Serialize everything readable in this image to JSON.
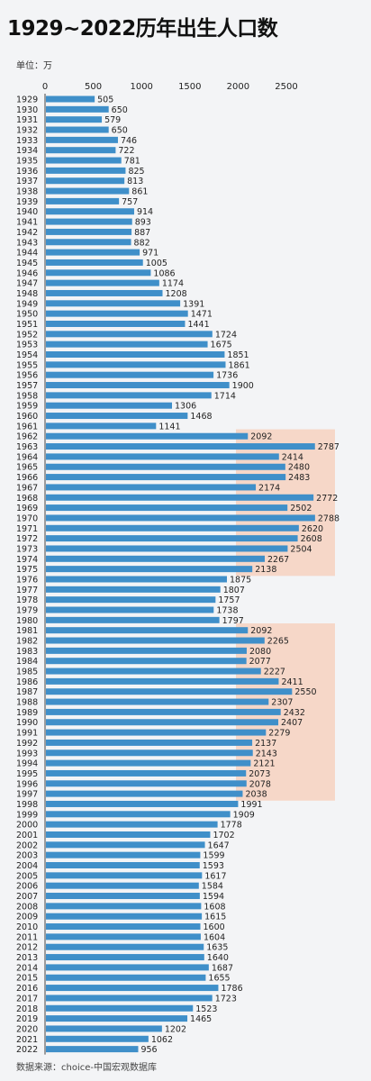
{
  "title": "1929~2022历年出生人口数",
  "unit_label": "单位：万",
  "source": "数据来源：choice-中国宏观数据库",
  "colors": {
    "bar": "#3f8fc9",
    "text": "#222222",
    "highlight": "#f7cdb8"
  },
  "chart_data": {
    "type": "bar",
    "orientation": "horizontal",
    "xticks": [
      0,
      500,
      1000,
      1500,
      2000,
      2500
    ],
    "xlim": [
      0,
      2800
    ],
    "highlight_ranges": [
      [
        1962,
        1975
      ],
      [
        1981,
        1997
      ]
    ],
    "categories": [
      "1929",
      "1930",
      "1931",
      "1932",
      "1933",
      "1934",
      "1935",
      "1936",
      "1937",
      "1938",
      "1939",
      "1940",
      "1941",
      "1942",
      "1943",
      "1944",
      "1945",
      "1946",
      "1947",
      "1948",
      "1949",
      "1950",
      "1951",
      "1952",
      "1953",
      "1954",
      "1955",
      "1956",
      "1957",
      "1958",
      "1959",
      "1960",
      "1961",
      "1962",
      "1963",
      "1964",
      "1965",
      "1966",
      "1967",
      "1968",
      "1969",
      "1970",
      "1971",
      "1972",
      "1973",
      "1974",
      "1975",
      "1976",
      "1977",
      "1978",
      "1979",
      "1980",
      "1981",
      "1982",
      "1983",
      "1984",
      "1985",
      "1986",
      "1987",
      "1988",
      "1989",
      "1990",
      "1991",
      "1992",
      "1993",
      "1994",
      "1995",
      "1996",
      "1997",
      "1998",
      "1999",
      "2000",
      "2001",
      "2002",
      "2003",
      "2004",
      "2005",
      "2006",
      "2007",
      "2008",
      "2009",
      "2010",
      "2011",
      "2012",
      "2013",
      "2014",
      "2015",
      "2016",
      "2017",
      "2018",
      "2019",
      "2020",
      "2021",
      "2022"
    ],
    "values": [
      505,
      650,
      579,
      650,
      746,
      722,
      781,
      825,
      813,
      861,
      757,
      914,
      893,
      887,
      882,
      971,
      1005,
      1086,
      1174,
      1208,
      1391,
      1471,
      1441,
      1724,
      1675,
      1851,
      1861,
      1736,
      1900,
      1714,
      1306,
      1468,
      1141,
      2092,
      2787,
      2414,
      2480,
      2483,
      2174,
      2772,
      2502,
      2788,
      2620,
      2608,
      2504,
      2267,
      2138,
      1875,
      1807,
      1757,
      1738,
      1797,
      2092,
      2265,
      2080,
      2077,
      2227,
      2411,
      2550,
      2307,
      2432,
      2407,
      2279,
      2137,
      2143,
      2121,
      2073,
      2078,
      2038,
      1991,
      1909,
      1778,
      1702,
      1647,
      1599,
      1593,
      1617,
      1584,
      1594,
      1608,
      1615,
      1600,
      1604,
      1635,
      1640,
      1687,
      1655,
      1786,
      1723,
      1523,
      1465,
      1202,
      1062,
      956
    ]
  }
}
